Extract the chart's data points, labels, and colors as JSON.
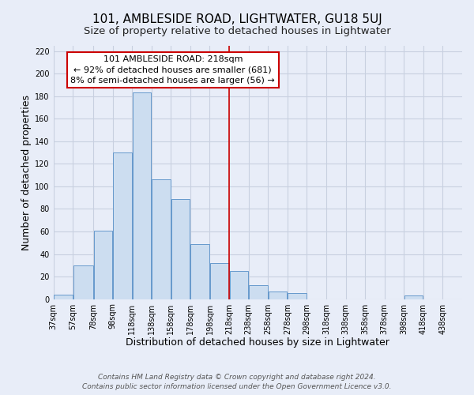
{
  "title": "101, AMBLESIDE ROAD, LIGHTWATER, GU18 5UJ",
  "subtitle": "Size of property relative to detached houses in Lightwater",
  "xlabel": "Distribution of detached houses by size in Lightwater",
  "ylabel": "Number of detached properties",
  "bar_left_edges": [
    37,
    57,
    78,
    98,
    118,
    138,
    158,
    178,
    198,
    218,
    238,
    258,
    278,
    298,
    318,
    338,
    358,
    378,
    398,
    418
  ],
  "bar_heights": [
    4,
    30,
    61,
    130,
    183,
    106,
    89,
    49,
    32,
    25,
    12,
    7,
    5,
    0,
    0,
    0,
    0,
    0,
    3,
    0
  ],
  "bar_widths": [
    20,
    21,
    20,
    20,
    20,
    20,
    20,
    20,
    20,
    20,
    20,
    20,
    20,
    20,
    20,
    20,
    20,
    20,
    20,
    20
  ],
  "bar_color": "#ccddf0",
  "bar_edge_color": "#6699cc",
  "vline_x": 218,
  "vline_color": "#cc0000",
  "annotation_title": "101 AMBLESIDE ROAD: 218sqm",
  "annotation_line1": "← 92% of detached houses are smaller (681)",
  "annotation_line2": "8% of semi-detached houses are larger (56) →",
  "annotation_box_color": "#ffffff",
  "annotation_box_edge": "#cc0000",
  "xlim": [
    37,
    458
  ],
  "ylim": [
    0,
    225
  ],
  "yticks": [
    0,
    20,
    40,
    60,
    80,
    100,
    120,
    140,
    160,
    180,
    200,
    220
  ],
  "xtick_labels": [
    "37sqm",
    "57sqm",
    "78sqm",
    "98sqm",
    "118sqm",
    "138sqm",
    "158sqm",
    "178sqm",
    "198sqm",
    "218sqm",
    "238sqm",
    "258sqm",
    "278sqm",
    "298sqm",
    "318sqm",
    "338sqm",
    "358sqm",
    "378sqm",
    "398sqm",
    "418sqm",
    "438sqm"
  ],
  "xtick_positions": [
    37,
    57,
    78,
    98,
    118,
    138,
    158,
    178,
    198,
    218,
    238,
    258,
    278,
    298,
    318,
    338,
    358,
    378,
    398,
    418,
    438
  ],
  "footer1": "Contains HM Land Registry data © Crown copyright and database right 2024.",
  "footer2": "Contains public sector information licensed under the Open Government Licence v3.0.",
  "background_color": "#e8edf8",
  "grid_color": "#c8d0e0",
  "title_fontsize": 11,
  "subtitle_fontsize": 9.5,
  "axis_label_fontsize": 9,
  "tick_fontsize": 7,
  "footer_fontsize": 6.5,
  "annotation_fontsize": 8
}
